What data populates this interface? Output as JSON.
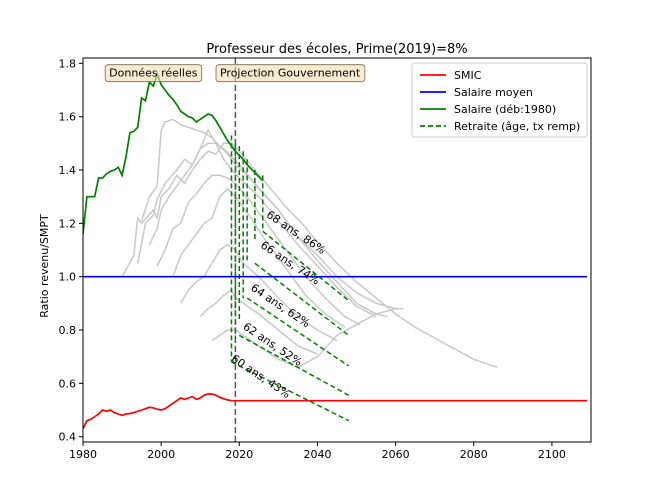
{
  "chart_data": {
    "type": "line",
    "title": "Professeur des écoles, Prime(2019)=8%",
    "ylabel": "Ratio revenu/SMPT",
    "xlabel": "",
    "xlim": [
      1980,
      2110
    ],
    "ylim": [
      0.38,
      1.82
    ],
    "xticks": [
      1980,
      2000,
      2020,
      2040,
      2060,
      2080,
      2100
    ],
    "xtick_labels": [
      "1980",
      "2000",
      "2020",
      "2040",
      "2060",
      "2080",
      "2100"
    ],
    "yticks": [
      0.4,
      0.6,
      0.8,
      1.0,
      1.2,
      1.4,
      1.6,
      1.8
    ],
    "ytick_labels": [
      "0.4",
      "0.6",
      "0.8",
      "1.0",
      "1.2",
      "1.4",
      "1.6",
      "1.8"
    ],
    "grid": false,
    "legend": {
      "position": "top-right",
      "entries": [
        {
          "label": "SMIC",
          "color": "#ff0000",
          "style": "solid"
        },
        {
          "label": "Salaire moyen",
          "color": "#0000ff",
          "style": "solid"
        },
        {
          "label": "Salaire (déb:1980)",
          "color": "#008000",
          "style": "solid"
        },
        {
          "label": "Retraite (âge, tx remp)",
          "color": "#008000",
          "style": "dashed"
        }
      ]
    },
    "vline": {
      "x": 2019,
      "color": "#555555",
      "style": "dashed"
    },
    "region_labels": [
      {
        "text": "Données réelles",
        "x": 1998,
        "y": 1.765
      },
      {
        "text": "Projection Gouvernement",
        "x": 2033,
        "y": 1.765
      }
    ],
    "series": [
      {
        "name": "SMIC",
        "color": "#ff0000",
        "x": [
          1980,
          1981,
          1982,
          1983,
          1984,
          1985,
          1986,
          1987,
          1988,
          1989,
          1990,
          1991,
          1992,
          1993,
          1994,
          1995,
          1996,
          1997,
          1998,
          1999,
          2000,
          2001,
          2002,
          2003,
          2004,
          2005,
          2006,
          2007,
          2008,
          2009,
          2010,
          2011,
          2012,
          2013,
          2014,
          2015,
          2016,
          2017,
          2018,
          2019,
          2109
        ],
        "y": [
          0.43,
          0.46,
          0.465,
          0.475,
          0.485,
          0.5,
          0.495,
          0.5,
          0.49,
          0.485,
          0.48,
          0.485,
          0.487,
          0.49,
          0.495,
          0.5,
          0.505,
          0.51,
          0.508,
          0.503,
          0.5,
          0.505,
          0.515,
          0.525,
          0.535,
          0.545,
          0.54,
          0.545,
          0.55,
          0.54,
          0.545,
          0.555,
          0.56,
          0.56,
          0.555,
          0.548,
          0.542,
          0.538,
          0.535,
          0.535,
          0.535
        ]
      },
      {
        "name": "Salaire moyen",
        "color": "#0000ff",
        "x": [
          1980,
          2109
        ],
        "y": [
          1.0,
          1.0
        ]
      },
      {
        "name": "Salaire (déb:1980)",
        "color": "#008000",
        "x": [
          1980,
          1981,
          1982,
          1983,
          1984,
          1985,
          1986,
          1987,
          1988,
          1989,
          1990,
          1991,
          1992,
          1993,
          1994,
          1995,
          1996,
          1997,
          1998,
          1999,
          2000,
          2001,
          2002,
          2003,
          2004,
          2005,
          2006,
          2007,
          2008,
          2009,
          2010,
          2011,
          2012,
          2013,
          2014,
          2015,
          2016,
          2017,
          2018,
          2019,
          2020,
          2021,
          2022,
          2023,
          2024,
          2025,
          2026
        ],
        "y": [
          1.16,
          1.3,
          1.3,
          1.3,
          1.37,
          1.37,
          1.385,
          1.395,
          1.4,
          1.41,
          1.38,
          1.45,
          1.54,
          1.545,
          1.56,
          1.67,
          1.66,
          1.73,
          1.715,
          1.76,
          1.72,
          1.7,
          1.68,
          1.665,
          1.645,
          1.62,
          1.61,
          1.6,
          1.595,
          1.58,
          1.59,
          1.6,
          1.61,
          1.605,
          1.585,
          1.56,
          1.535,
          1.51,
          1.49,
          1.47,
          1.455,
          1.44,
          1.42,
          1.405,
          1.39,
          1.375,
          1.36
        ]
      }
    ],
    "gray_series": [
      {
        "x": [
          1990,
          1993,
          1994,
          1995,
          1998,
          1999,
          2000,
          2002,
          2004,
          2006,
          2008,
          2010,
          2012,
          2014,
          2016,
          2018,
          2020,
          2024,
          2028,
          2032,
          2036,
          2040,
          2045,
          2050,
          2055,
          2060,
          2065,
          2070,
          2075,
          2080,
          2086
        ],
        "y": [
          1.0,
          1.08,
          1.22,
          1.2,
          1.25,
          1.22,
          1.3,
          1.33,
          1.38,
          1.35,
          1.4,
          1.44,
          1.47,
          1.46,
          1.5,
          1.5,
          1.47,
          1.4,
          1.33,
          1.26,
          1.2,
          1.13,
          1.05,
          0.98,
          0.92,
          0.86,
          0.81,
          0.77,
          0.73,
          0.69,
          0.66
        ]
      },
      {
        "x": [
          1994,
          1996,
          1998,
          1999,
          2001,
          2004,
          2006,
          2008,
          2010,
          2012,
          2014,
          2016,
          2018,
          2020,
          2024,
          2030,
          2035,
          2040,
          2045,
          2050,
          2055,
          2060,
          2062
        ],
        "y": [
          1.05,
          1.2,
          1.23,
          1.29,
          1.35,
          1.4,
          1.44,
          1.42,
          1.48,
          1.5,
          1.5,
          1.48,
          1.45,
          1.42,
          1.35,
          1.25,
          1.15,
          1.08,
          1.0,
          0.94,
          0.9,
          0.88,
          0.88
        ]
      },
      {
        "x": [
          1995,
          1997,
          1999,
          2000,
          2001,
          2003,
          2005,
          2007,
          2009,
          2011,
          2013,
          2015,
          2017,
          2019,
          2022,
          2025,
          2030,
          2035,
          2040,
          2045,
          2050,
          2055,
          2058
        ],
        "y": [
          1.21,
          1.3,
          1.34,
          1.55,
          1.58,
          1.59,
          1.57,
          1.56,
          1.55,
          1.54,
          1.52,
          1.49,
          1.46,
          1.42,
          1.38,
          1.33,
          1.25,
          1.15,
          1.06,
          0.98,
          0.9,
          0.86,
          0.85
        ]
      },
      {
        "x": [
          1997,
          1999,
          2000,
          2002,
          2005,
          2008,
          2010,
          2012,
          2014,
          2016,
          2018,
          2020,
          2025,
          2030,
          2035,
          2040,
          2045,
          2050,
          2055
        ],
        "y": [
          1.12,
          1.18,
          1.25,
          1.3,
          1.36,
          1.42,
          1.48,
          1.55,
          1.5,
          1.44,
          1.4,
          1.37,
          1.3,
          1.21,
          1.12,
          1.04,
          0.96,
          0.89,
          0.85
        ]
      },
      {
        "x": [
          1999,
          2001,
          2003,
          2005,
          2007,
          2009,
          2011,
          2013,
          2015,
          2017,
          2019,
          2023,
          2027,
          2032,
          2037,
          2042,
          2047,
          2051
        ],
        "y": [
          1.04,
          1.1,
          1.18,
          1.2,
          1.28,
          1.31,
          1.35,
          1.38,
          1.38,
          1.37,
          1.35,
          1.28,
          1.2,
          1.1,
          1.0,
          0.92,
          0.85,
          0.82
        ]
      },
      {
        "x": [
          2003,
          2005,
          2007,
          2009,
          2011,
          2013,
          2015,
          2017,
          2019,
          2023,
          2027,
          2032,
          2037,
          2042,
          2047
        ],
        "y": [
          1.0,
          1.08,
          1.12,
          1.16,
          1.2,
          1.22,
          1.3,
          1.33,
          1.3,
          1.22,
          1.13,
          1.03,
          0.93,
          0.86,
          0.81
        ]
      },
      {
        "x": [
          2005,
          2007,
          2009,
          2011,
          2013,
          2015,
          2017,
          2019,
          2021,
          2025,
          2030,
          2035,
          2040,
          2045
        ],
        "y": [
          0.9,
          0.95,
          0.98,
          1.0,
          1.05,
          1.1,
          1.12,
          1.1,
          1.05,
          1.0,
          0.92,
          0.85,
          0.8,
          0.76
        ]
      },
      {
        "x": [
          2010,
          2012,
          2014,
          2016,
          2018,
          2019,
          2021,
          2025,
          2030,
          2035,
          2040
        ],
        "y": [
          0.85,
          0.88,
          0.9,
          0.93,
          0.95,
          0.92,
          0.9,
          0.86,
          0.8,
          0.74,
          0.71
        ]
      },
      {
        "x": [
          2013,
          2015,
          2017,
          2019,
          2021,
          2025,
          2030,
          2035
        ],
        "y": [
          0.76,
          0.78,
          0.8,
          0.8,
          0.78,
          0.74,
          0.69,
          0.66
        ]
      },
      {
        "x": [
          2035,
          2040,
          2045,
          2050,
          2055,
          2060
        ],
        "y": [
          0.66,
          0.7,
          0.78,
          0.82,
          0.86,
          0.88
        ]
      }
    ],
    "retirement_dashes": [
      {
        "x0": 2018,
        "y0": 1.53,
        "x1": 2018,
        "y1": 0.68
      },
      {
        "x0": 2019,
        "y0": 1.5,
        "x1": 2019,
        "y1": 0.77
      },
      {
        "x0": 2020,
        "y0": 1.49,
        "x1": 2020,
        "y1": 0.84
      },
      {
        "x0": 2021,
        "y0": 1.47,
        "x1": 2021,
        "y1": 0.92
      },
      {
        "x0": 2022,
        "y0": 1.44,
        "x1": 2022,
        "y1": 1.05
      },
      {
        "x0": 2024,
        "y0": 1.4,
        "x1": 2024,
        "y1": 1.13
      },
      {
        "x0": 2026,
        "y0": 1.38,
        "x1": 2026,
        "y1": 1.17
      },
      {
        "x0": 2018,
        "y0": 0.68,
        "x1": 2048,
        "y1": 0.46
      },
      {
        "x0": 2020,
        "y0": 0.78,
        "x1": 2048,
        "y1": 0.555
      },
      {
        "x0": 2022,
        "y0": 0.92,
        "x1": 2048,
        "y1": 0.665
      },
      {
        "x0": 2024,
        "y0": 1.05,
        "x1": 2048,
        "y1": 0.78
      },
      {
        "x0": 2026,
        "y0": 1.17,
        "x1": 2048,
        "y1": 0.91
      }
    ],
    "annotations": [
      {
        "text": "68 ans, 86%",
        "x": 2034,
        "y": 1.155,
        "angle": 34
      },
      {
        "text": "66 ans, 74%",
        "x": 2032.5,
        "y": 1.04,
        "angle": 34
      },
      {
        "text": "64 ans, 62%",
        "x": 2030,
        "y": 0.88,
        "angle": 34
      },
      {
        "text": "62 ans, 52%",
        "x": 2028,
        "y": 0.735,
        "angle": 34
      },
      {
        "text": "60 ans, 43%",
        "x": 2025,
        "y": 0.615,
        "angle": 34
      }
    ]
  }
}
